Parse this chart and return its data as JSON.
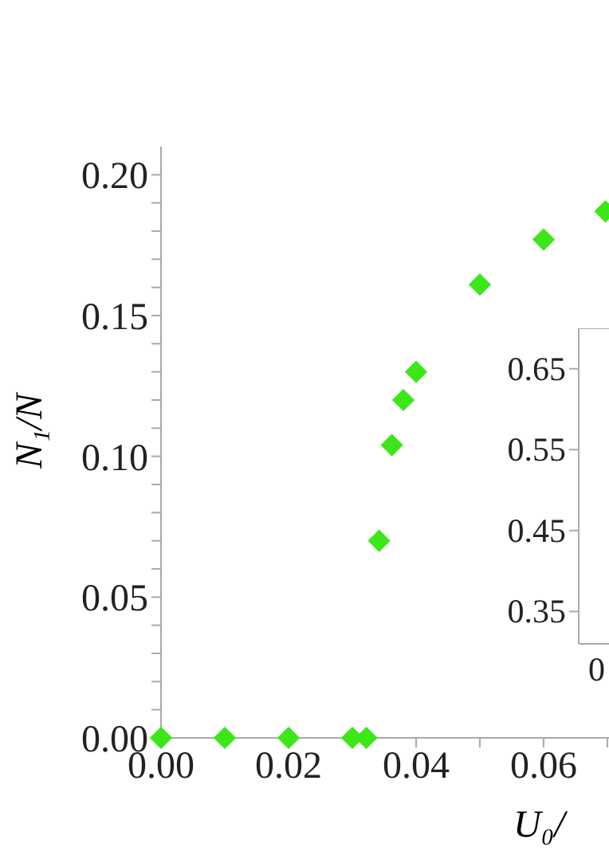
{
  "chart_data": [
    {
      "type": "scatter",
      "xlabel": "U₀/",
      "ylabel": "N₁/N",
      "marker": "diamond",
      "grid": false,
      "series": [
        {
          "color": "#3de619",
          "x": [
            0,
            0.01,
            0.02,
            0.03,
            0.0322,
            0.0342,
            0.0362,
            0.038,
            0.04,
            0.05,
            0.06,
            0.0697
          ],
          "values": [
            0,
            0,
            0,
            0,
            0,
            0.07,
            0.104,
            0.12,
            0.13,
            0.161,
            0.177,
            0.187
          ]
        }
      ],
      "xlim": [
        0,
        0.08
      ],
      "ylim": [
        0,
        0.21
      ],
      "xticks": [
        {
          "value": 0,
          "label": "0.00"
        },
        {
          "value": 0.01,
          "label": null
        },
        0.02,
        {
          "value": 0.03,
          "label": null
        },
        0.04,
        {
          "value": 0.05,
          "label": null
        },
        0.06,
        {
          "value": 0.07,
          "label": null
        }
      ],
      "yticks": [
        {
          "value": 0,
          "label": "0.00"
        },
        {
          "value": 0.01,
          "label": null
        },
        {
          "value": 0.02,
          "label": null
        },
        {
          "value": 0.03,
          "label": null
        },
        {
          "value": 0.04,
          "label": null
        },
        0.05,
        {
          "value": 0.06,
          "label": null
        },
        {
          "value": 0.07,
          "label": null
        },
        {
          "value": 0.08,
          "label": null
        },
        {
          "value": 0.09,
          "label": null
        },
        {
          "value": 0.1,
          "label": "0.10"
        },
        {
          "value": 0.11,
          "label": null
        },
        {
          "value": 0.12,
          "label": null
        },
        {
          "value": 0.13,
          "label": null
        },
        {
          "value": 0.14,
          "label": null
        },
        0.15,
        {
          "value": 0.16,
          "label": null
        },
        {
          "value": 0.17,
          "label": null
        },
        {
          "value": 0.18,
          "label": null
        },
        {
          "value": 0.19,
          "label": null
        },
        {
          "value": 0.2,
          "label": "0.20"
        }
      ]
    },
    {
      "type": "scatter",
      "categories": [
        null
      ],
      "values": [
        null
      ],
      "annotations": [
        "0"
      ],
      "ylim": [
        0.31,
        0.7
      ],
      "yticks": [
        0.35,
        0.45,
        0.55,
        0.65
      ]
    }
  ]
}
